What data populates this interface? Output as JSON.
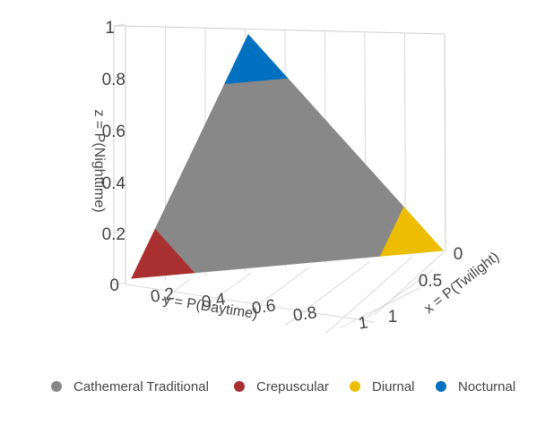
{
  "chart_data": {
    "type": "ternary-3d-surface",
    "title": "",
    "axes": {
      "x": {
        "label": "x = P(Twilight)",
        "ticks": [
          "0",
          "0.5",
          "1"
        ],
        "range": [
          0,
          1
        ]
      },
      "y": {
        "label": "y = P(Daytime)",
        "ticks": [
          "0.2",
          "0.4",
          "0.6",
          "0.8",
          "1"
        ],
        "range": [
          0,
          1
        ]
      },
      "z": {
        "label": "z = P(Nighttime)",
        "ticks": [
          "0",
          "0.2",
          "0.4",
          "0.6",
          "0.8",
          "1"
        ],
        "range": [
          0,
          1
        ]
      }
    },
    "grid": true,
    "legend_position": "bottom",
    "series": [
      {
        "name": "Cathemeral Traditional",
        "color": "#888888",
        "region": [
          [
            0.2,
            0.0,
            0.8
          ],
          [
            0.2,
            0.8,
            0.0
          ],
          [
            0.0,
            0.2,
            0.8
          ],
          [
            0.0,
            0.8,
            0.2
          ],
          [
            0.8,
            0.2,
            0.0
          ],
          [
            0.8,
            0.0,
            0.2
          ]
        ]
      },
      {
        "name": "Crepuscular",
        "color": "#a93030",
        "region": [
          [
            1.0,
            0.0,
            0.0
          ],
          [
            0.8,
            0.2,
            0.0
          ],
          [
            0.8,
            0.0,
            0.2
          ]
        ]
      },
      {
        "name": "Diurnal",
        "color": "#ecbd00",
        "region": [
          [
            0.0,
            1.0,
            0.0
          ],
          [
            0.2,
            0.8,
            0.0
          ],
          [
            0.0,
            0.8,
            0.2
          ]
        ]
      },
      {
        "name": "Nocturnal",
        "color": "#0070c0",
        "region": [
          [
            0.0,
            0.0,
            1.0
          ],
          [
            0.2,
            0.0,
            0.8
          ],
          [
            0.0,
            0.2,
            0.8
          ]
        ]
      }
    ]
  }
}
